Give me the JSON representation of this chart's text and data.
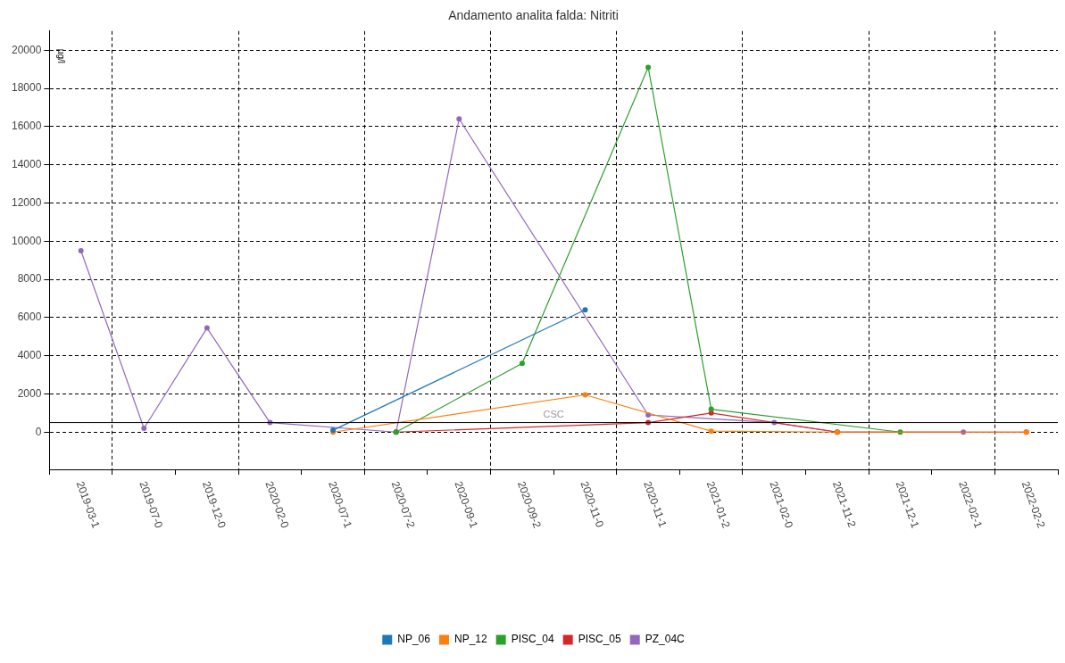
{
  "chart_data": {
    "type": "line",
    "title": "Andamento analita falda: Nitriti",
    "ylabel": "µg/l",
    "categories": [
      "2019-03-1",
      "2019-07-0",
      "2019-12-0",
      "2020-02-0",
      "2020-07-1",
      "2020-07-2",
      "2020-09-1",
      "2020-09-2",
      "2020-11-0",
      "2020-11-1",
      "2021-01-2",
      "2021-02-0",
      "2021-11-2",
      "2021-12-1",
      "2022-02-1",
      "2022-02-2"
    ],
    "series": [
      {
        "name": "NP_06",
        "color": "#1f77b4",
        "values": [
          null,
          null,
          null,
          null,
          100,
          null,
          null,
          null,
          6400,
          null,
          null,
          null,
          null,
          null,
          null,
          null
        ]
      },
      {
        "name": "NP_12",
        "color": "#ff7f0e",
        "values": [
          null,
          null,
          null,
          null,
          0,
          null,
          null,
          null,
          1950,
          null,
          50,
          null,
          0,
          null,
          null,
          0
        ]
      },
      {
        "name": "PISC_04",
        "color": "#2ca02c",
        "values": [
          null,
          null,
          null,
          null,
          null,
          0,
          null,
          3600,
          null,
          19100,
          1200,
          null,
          null,
          0,
          null,
          null
        ]
      },
      {
        "name": "PISC_05",
        "color": "#d62728",
        "values": [
          null,
          null,
          null,
          null,
          null,
          0,
          null,
          null,
          null,
          500,
          1000,
          null,
          0,
          null,
          null,
          0
        ]
      },
      {
        "name": "PZ_04C",
        "color": "#9467bd",
        "values": [
          9500,
          200,
          5450,
          500,
          null,
          0,
          16400,
          null,
          null,
          900,
          null,
          500,
          0,
          null,
          0,
          null
        ]
      }
    ],
    "ylim": [
      -1950,
      21000
    ],
    "yticks": [
      0,
      2000,
      4000,
      6000,
      8000,
      10000,
      12000,
      14000,
      16000,
      18000,
      20000
    ],
    "ref_lines": [
      {
        "axis": "y",
        "value": 500,
        "label": "CSC",
        "color": "#000000"
      }
    ],
    "grid": true,
    "legend": "bottom",
    "marker": "circle",
    "line_style": "solid"
  }
}
